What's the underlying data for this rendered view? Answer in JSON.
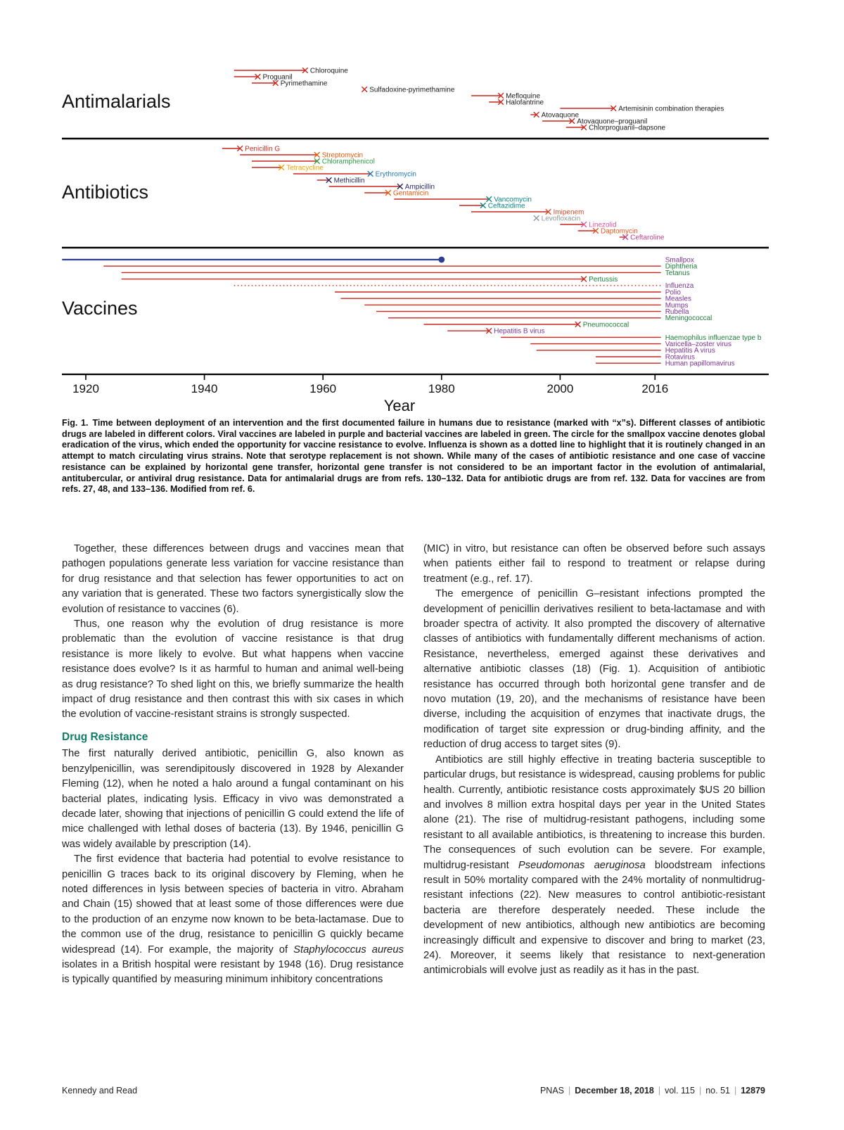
{
  "caption": {
    "prefix": "Fig. 1.",
    "text": "Time between deployment of an intervention and the first documented failure in humans due to resistance (marked with “x”s). Different classes of antibiotic drugs are labeled in different colors. Viral vaccines are labeled in purple and bacterial vaccines are labeled in green. The circle for the smallpox vaccine denotes global eradication of the virus, which ended the opportunity for vaccine resistance to evolve. Influenza is shown as a dotted line to highlight that it is routinely changed in an attempt to match circulating virus strains. Note that serotype replacement is not shown. While many of the cases of antibiotic resistance and one case of vaccine resistance can be explained by horizontal gene transfer, horizontal gene transfer is not considered to be an important factor in the evolution of antimalarial, antitubercular, or antiviral drug resistance. Data for antimalarial drugs are from refs. 130–132. Data for antibiotic drugs are from ref. 132. Data for vaccines are from refs. 27, 48, and 133–136. Modified from ref. 6."
  },
  "article": {
    "heading_color": "#0f7d68",
    "left_column": [
      {
        "type": "p",
        "indent": true,
        "text": "Together, these differences between drugs and vaccines mean that pathogen populations generate less variation for vaccine resistance than for drug resistance and that selection has fewer opportunities to act on any variation that is generated. These two factors synergistically slow the evolution of resistance to vaccines (6)."
      },
      {
        "type": "p",
        "indent": true,
        "text": "Thus, one reason why the evolution of drug resistance is more problematic than the evolution of vaccine resistance is that drug resistance is more likely to evolve. But what happens when vaccine resistance does evolve? Is it as harmful to human and animal well-being as drug resistance? To shed light on this, we briefly summarize the health impact of drug resistance and then contrast this with six cases in which the evolution of vaccine-resistant strains is strongly suspected."
      },
      {
        "type": "h2",
        "text": "Drug Resistance"
      },
      {
        "type": "p",
        "indent": false,
        "text": "The first naturally derived antibiotic, penicillin G, also known as benzylpenicillin, was serendipitously discovered in 1928 by Alexander Fleming (12), when he noted a halo around a fungal contaminant on his bacterial plates, indicating lysis. Efficacy in vivo was demonstrated a decade later, showing that injections of penicillin G could extend the life of mice challenged with lethal doses of bacteria (13). By 1946, penicillin G was widely available by prescription (14)."
      },
      {
        "type": "p",
        "indent": true,
        "text": "The first evidence that bacteria had potential to evolve resistance to penicillin G traces back to its original discovery by Fleming, when he noted differences in lysis between species of bacteria in vitro. Abraham and Chain (15) showed that at least some of those differences were due to the production of an enzyme now known to be beta-lactamase. Due to the common use of the drug, resistance to penicillin G quickly became widespread (14). For example, the majority of *Staphylococcus aureus* isolates in a British hospital were resistant by 1948 (16). Drug resistance is typically quantified by measuring minimum inhibitory concentrations"
      }
    ],
    "right_column": [
      {
        "type": "p",
        "indent": false,
        "text": "(MIC) in vitro, but resistance can often be observed before such assays when patients either fail to respond to treatment or relapse during treatment (e.g., ref. 17)."
      },
      {
        "type": "p",
        "indent": true,
        "text": "The emergence of penicillin G–resistant infections prompted the development of penicillin derivatives resilient to beta-lactamase and with broader spectra of activity. It also prompted the discovery of alternative classes of antibiotics with fundamentally different mechanisms of action. Resistance, nevertheless, emerged against these derivatives and alternative antibiotic classes (18) (Fig. 1). Acquisition of antibiotic resistance has occurred through both horizontal gene transfer and de novo mutation (19, 20), and the mechanisms of resistance have been diverse, including the acquisition of enzymes that inactivate drugs, the modification of target site expression or drug-binding affinity, and the reduction of drug access to target sites (9)."
      },
      {
        "type": "p",
        "indent": true,
        "text": "Antibiotics are still highly effective in treating bacteria susceptible to particular drugs, but resistance is widespread, causing problems for public health. Currently, antibiotic resistance costs approximately $US 20 billion and involves 8 million extra hospital days per year in the United States alone (21). The rise of multidrug-resistant pathogens, including some resistant to all available antibiotics, is threatening to increase this burden. The consequences of such evolution can be severe. For example, multidrug-resistant *Pseudomonas aeruginosa* bloodstream infections result in 50% mortality compared with the 24% mortality of nonmultidrug-resistant infections (22). New measures to control antibiotic-resistant bacteria are therefore desperately needed. These include the development of new antibiotics, although new antibiotics are becoming increasingly difficult and expensive to discover and bring to market (23, 24). Moreover, it seems likely that resistance to next-generation antimicrobials will evolve just as readily as it has in the past."
      }
    ]
  },
  "footer": {
    "authors": "Kennedy and Read",
    "journal_line": [
      {
        "text": "PNAS",
        "bold": false
      },
      {
        "text": "|",
        "sep": true
      },
      {
        "text": "December 18, 2018",
        "bold": true
      },
      {
        "text": "|",
        "sep": true
      },
      {
        "text": "vol. 115",
        "bold": false
      },
      {
        "text": "|",
        "sep": true
      },
      {
        "text": "no. 51",
        "bold": false
      },
      {
        "text": "|",
        "sep": true
      },
      {
        "text": "12879",
        "bold": true
      }
    ]
  },
  "chart_data": {
    "type": "timeline",
    "xlabel": "Year",
    "x_ticks": [
      1920,
      1940,
      1960,
      1980,
      2000,
      2016
    ],
    "x_range": [
      1916,
      2018
    ],
    "present_year": 2017,
    "line_color_default": "#c9251b",
    "legend": {
      "viral_vaccine_label_color": "#7b3294",
      "bacterial_vaccine_label_color": "#1e7d3c",
      "deployment_line_color": "#c9251b",
      "smallpox_line_color": "#2d3f92",
      "x_mark_meaning": "first documented failure in humans due to resistance",
      "circle_meaning": "global eradication of smallpox virus",
      "dotted_meaning": "influenza vaccine routinely changed to match circulating strains"
    },
    "groups": [
      {
        "label": "Antimalarials",
        "items": [
          {
            "name": "Chloroquine",
            "deployed": 1945,
            "resistance": 1957
          },
          {
            "name": "Proguanil",
            "deployed": 1945,
            "resistance": 1949
          },
          {
            "name": "Pyrimethamine",
            "deployed": 1948,
            "resistance": 1952
          },
          {
            "name": "Sulfadoxine-pyrimethamine",
            "deployed": 1967,
            "resistance": 1967
          },
          {
            "name": "Mefloquine",
            "deployed": 1985,
            "resistance": 1990
          },
          {
            "name": "Halofantrine",
            "deployed": 1988,
            "resistance": 1990
          },
          {
            "name": "Artemisinin combination therapies",
            "deployed": 2000,
            "resistance": 2009
          },
          {
            "name": "Atovaquone",
            "deployed": 1995,
            "resistance": 1996
          },
          {
            "name": "Atovaquone–proguanil",
            "deployed": 1997,
            "resistance": 2002
          },
          {
            "name": "Chlorproguanil–dapsone",
            "deployed": 2001,
            "resistance": 2004
          }
        ]
      },
      {
        "label": "Antibiotics",
        "items": [
          {
            "name": "Penicillin G",
            "deployed": 1943,
            "resistance": 1946,
            "color": "#cb2b1f"
          },
          {
            "name": "Streptomycin",
            "deployed": 1946,
            "resistance": 1959,
            "color": "#e8590c"
          },
          {
            "name": "Chloramphenicol",
            "deployed": 1948,
            "resistance": 1959,
            "color": "#2e9e46"
          },
          {
            "name": "Tetracycline",
            "deployed": 1948,
            "resistance": 1953,
            "color": "#f0a202"
          },
          {
            "name": "Erythromycin",
            "deployed": 1955,
            "resistance": 1968,
            "color": "#1f77b4"
          },
          {
            "name": "Methicillin",
            "deployed": 1959,
            "resistance": 1961,
            "color": "#25255e"
          },
          {
            "name": "Ampicillin",
            "deployed": 1961,
            "resistance": 1973,
            "color": "#25255e"
          },
          {
            "name": "Gentamicin",
            "deployed": 1967,
            "resistance": 1971,
            "color": "#e8590c"
          },
          {
            "name": "Vancomycin",
            "deployed": 1972,
            "resistance": 1988,
            "color": "#0e8585"
          },
          {
            "name": "Ceftazidime",
            "deployed": 1983,
            "resistance": 1987,
            "color": "#0e8585"
          },
          {
            "name": "Imipenem",
            "deployed": 1985,
            "resistance": 1998,
            "color": "#d84b2a"
          },
          {
            "name": "Levofloxacin",
            "deployed": 1996,
            "resistance": 1996,
            "color": "#8e979e"
          },
          {
            "name": "Linezolid",
            "deployed": 2000,
            "resistance": 2004,
            "color": "#e0519e"
          },
          {
            "name": "Daptomycin",
            "deployed": 2003,
            "resistance": 2006,
            "color": "#e2571f"
          },
          {
            "name": "Ceftaroline",
            "deployed": 2010,
            "resistance": 2011,
            "color": "#c2418c"
          }
        ]
      },
      {
        "label": "Vaccines",
        "items": [
          {
            "name": "Smallpox",
            "deployed": 1916,
            "end": 1980,
            "marker": "circle",
            "label_color": "#7b3294",
            "line_color": "#2d3f92",
            "line_width": 2.2
          },
          {
            "name": "Diphtheria",
            "deployed": 1923,
            "ongoing": true,
            "label_color": "#1e7d3c"
          },
          {
            "name": "Tetanus",
            "deployed": 1926,
            "ongoing": true,
            "label_color": "#1e7d3c"
          },
          {
            "name": "Pertussis",
            "deployed": 1926,
            "resistance": 2004,
            "label_color": "#1e7d3c"
          },
          {
            "name": "Influenza",
            "deployed": 1945,
            "ongoing": true,
            "dotted": true,
            "label_color": "#7b3294"
          },
          {
            "name": "Polio",
            "deployed": 1962,
            "ongoing": true,
            "label_color": "#7b3294"
          },
          {
            "name": "Measles",
            "deployed": 1963,
            "ongoing": true,
            "label_color": "#7b3294"
          },
          {
            "name": "Mumps",
            "deployed": 1967,
            "ongoing": true,
            "label_color": "#7b3294"
          },
          {
            "name": "Rubella",
            "deployed": 1969,
            "ongoing": true,
            "label_color": "#7b3294"
          },
          {
            "name": "Meningococcal",
            "deployed": 1971,
            "ongoing": true,
            "label_color": "#1e7d3c"
          },
          {
            "name": "Pneumococcal",
            "deployed": 1977,
            "resistance": 2003,
            "label_color": "#1e7d3c"
          },
          {
            "name": "Hepatitis B virus",
            "deployed": 1981,
            "resistance": 1988,
            "label_color": "#7b3294"
          },
          {
            "name": "Haemophilus influenzae type b",
            "deployed": 1990,
            "ongoing": true,
            "label_color": "#1e7d3c"
          },
          {
            "name": "Varicella–zoster virus",
            "deployed": 1995,
            "ongoing": true,
            "label_color": "#7b3294"
          },
          {
            "name": "Hepatitis A virus",
            "deployed": 1996,
            "ongoing": true,
            "label_color": "#7b3294"
          },
          {
            "name": "Rotavirus",
            "deployed": 2006,
            "ongoing": true,
            "label_color": "#7b3294"
          },
          {
            "name": "Human papillomavirus",
            "deployed": 2006,
            "ongoing": true,
            "label_color": "#7b3294"
          }
        ]
      }
    ]
  }
}
